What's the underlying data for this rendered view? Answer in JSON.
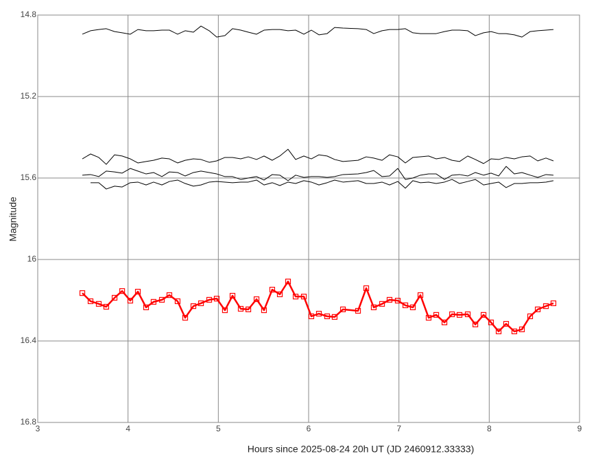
{
  "chart_data": {
    "type": "line",
    "xlabel": "Hours since 2025-08-24 20h UT (JD 2460912.33333)",
    "ylabel": "Magnitude",
    "xlim": [
      3,
      9
    ],
    "xticks": [
      3,
      4,
      5,
      6,
      7,
      8,
      9
    ],
    "ylim": [
      14.8,
      16.8
    ],
    "yticks": [
      14.8,
      15.2,
      15.6,
      16,
      16.4,
      16.8
    ],
    "y_inverted": true,
    "grid": true,
    "x": [
      3.494,
      3.585,
      3.676,
      3.759,
      3.851,
      3.935,
      4.025,
      4.109,
      4.2,
      4.283,
      4.375,
      4.458,
      4.549,
      4.633,
      4.724,
      4.808,
      4.899,
      4.982,
      5.073,
      5.157,
      5.248,
      5.332,
      5.423,
      5.506,
      5.597,
      5.681,
      5.772,
      5.856,
      5.947,
      6.03,
      6.114,
      6.205,
      6.288,
      6.38,
      6.547,
      6.638,
      6.721,
      6.813,
      6.896,
      6.987,
      7.071,
      7.154,
      7.238,
      7.329,
      7.413,
      7.504,
      7.588,
      7.671,
      7.762,
      7.846,
      7.937,
      8.02,
      8.104,
      8.187,
      8.278,
      8.362,
      8.453,
      8.537,
      8.628,
      8.711
    ],
    "series": [
      {
        "color": "#000000",
        "values": [
          14.894,
          14.877,
          14.871,
          14.867,
          14.881,
          14.887,
          14.894,
          14.871,
          14.877,
          14.877,
          14.874,
          14.874,
          14.894,
          14.877,
          14.884,
          14.854,
          14.877,
          14.908,
          14.901,
          14.867,
          14.874,
          14.884,
          14.894,
          14.874,
          14.871,
          14.871,
          14.877,
          14.874,
          14.894,
          14.874,
          14.897,
          14.891,
          14.861,
          14.864,
          14.867,
          14.871,
          14.891,
          14.877,
          14.871,
          14.871,
          14.867,
          14.887,
          14.891,
          14.891,
          14.891,
          14.881,
          14.874,
          14.874,
          14.877,
          14.901,
          14.887,
          14.881,
          14.891,
          14.891,
          14.897,
          14.908,
          14.881,
          14.877,
          14.874,
          14.871
        ]
      },
      {
        "color": "#000000",
        "values": [
          15.506,
          15.482,
          15.499,
          15.533,
          15.486,
          15.492,
          15.506,
          15.526,
          15.519,
          15.513,
          15.502,
          15.506,
          15.526,
          15.513,
          15.506,
          15.509,
          15.523,
          15.516,
          15.499,
          15.499,
          15.506,
          15.496,
          15.509,
          15.492,
          15.513,
          15.492,
          15.459,
          15.509,
          15.492,
          15.506,
          15.486,
          15.492,
          15.509,
          15.519,
          15.513,
          15.496,
          15.502,
          15.513,
          15.486,
          15.496,
          15.526,
          15.499,
          15.496,
          15.492,
          15.506,
          15.499,
          15.513,
          15.519,
          15.492,
          15.509,
          15.529,
          15.506,
          15.509,
          15.499,
          15.506,
          15.496,
          15.492,
          15.516,
          15.502,
          15.516
        ]
      },
      {
        "color": "#000000",
        "values": [
          15.586,
          15.583,
          15.593,
          15.566,
          15.57,
          15.576,
          15.553,
          15.566,
          15.58,
          15.573,
          15.593,
          15.57,
          15.573,
          15.59,
          15.573,
          15.566,
          15.573,
          15.58,
          15.593,
          15.593,
          15.607,
          15.6,
          15.593,
          15.61,
          15.583,
          15.586,
          15.613,
          15.586,
          15.597,
          15.593,
          15.593,
          15.597,
          15.593,
          15.583,
          15.58,
          15.573,
          15.563,
          15.593,
          15.59,
          15.553,
          15.607,
          15.6,
          15.586,
          15.58,
          15.58,
          15.607,
          15.586,
          15.583,
          15.59,
          15.573,
          15.586,
          15.576,
          15.59,
          15.543,
          15.58,
          15.573,
          15.586,
          15.597,
          15.583,
          15.586
        ]
      },
      {
        "color": "#000000",
        "values": [
          null,
          15.623,
          15.623,
          15.654,
          15.64,
          15.644,
          15.623,
          15.62,
          15.634,
          15.62,
          15.634,
          15.617,
          15.61,
          15.627,
          15.64,
          15.634,
          15.62,
          15.617,
          15.62,
          15.623,
          15.62,
          15.62,
          15.61,
          15.634,
          15.623,
          15.637,
          15.62,
          15.627,
          15.613,
          15.62,
          15.634,
          15.623,
          15.61,
          15.62,
          15.613,
          15.627,
          15.627,
          15.62,
          15.634,
          15.617,
          15.65,
          15.613,
          15.623,
          15.62,
          15.627,
          15.62,
          15.607,
          15.627,
          15.617,
          15.607,
          15.634,
          15.627,
          15.62,
          15.647,
          15.627,
          15.627,
          15.623,
          15.623,
          15.62,
          15.613
        ]
      },
      {
        "color": "#ff0000",
        "marker": "square",
        "values": [
          16.165,
          16.205,
          16.218,
          16.232,
          16.188,
          16.155,
          16.202,
          16.158,
          16.235,
          16.208,
          16.198,
          16.175,
          16.205,
          16.286,
          16.229,
          16.215,
          16.198,
          16.192,
          16.249,
          16.178,
          16.242,
          16.245,
          16.195,
          16.249,
          16.148,
          16.171,
          16.108,
          16.182,
          16.182,
          16.279,
          16.266,
          16.279,
          16.282,
          16.245,
          16.252,
          16.141,
          16.235,
          16.218,
          16.198,
          16.202,
          16.225,
          16.235,
          16.175,
          16.286,
          16.272,
          16.309,
          16.269,
          16.272,
          16.269,
          16.319,
          16.272,
          16.309,
          16.353,
          16.316,
          16.353,
          16.343,
          16.279,
          16.245,
          16.229,
          16.215
        ]
      }
    ]
  }
}
